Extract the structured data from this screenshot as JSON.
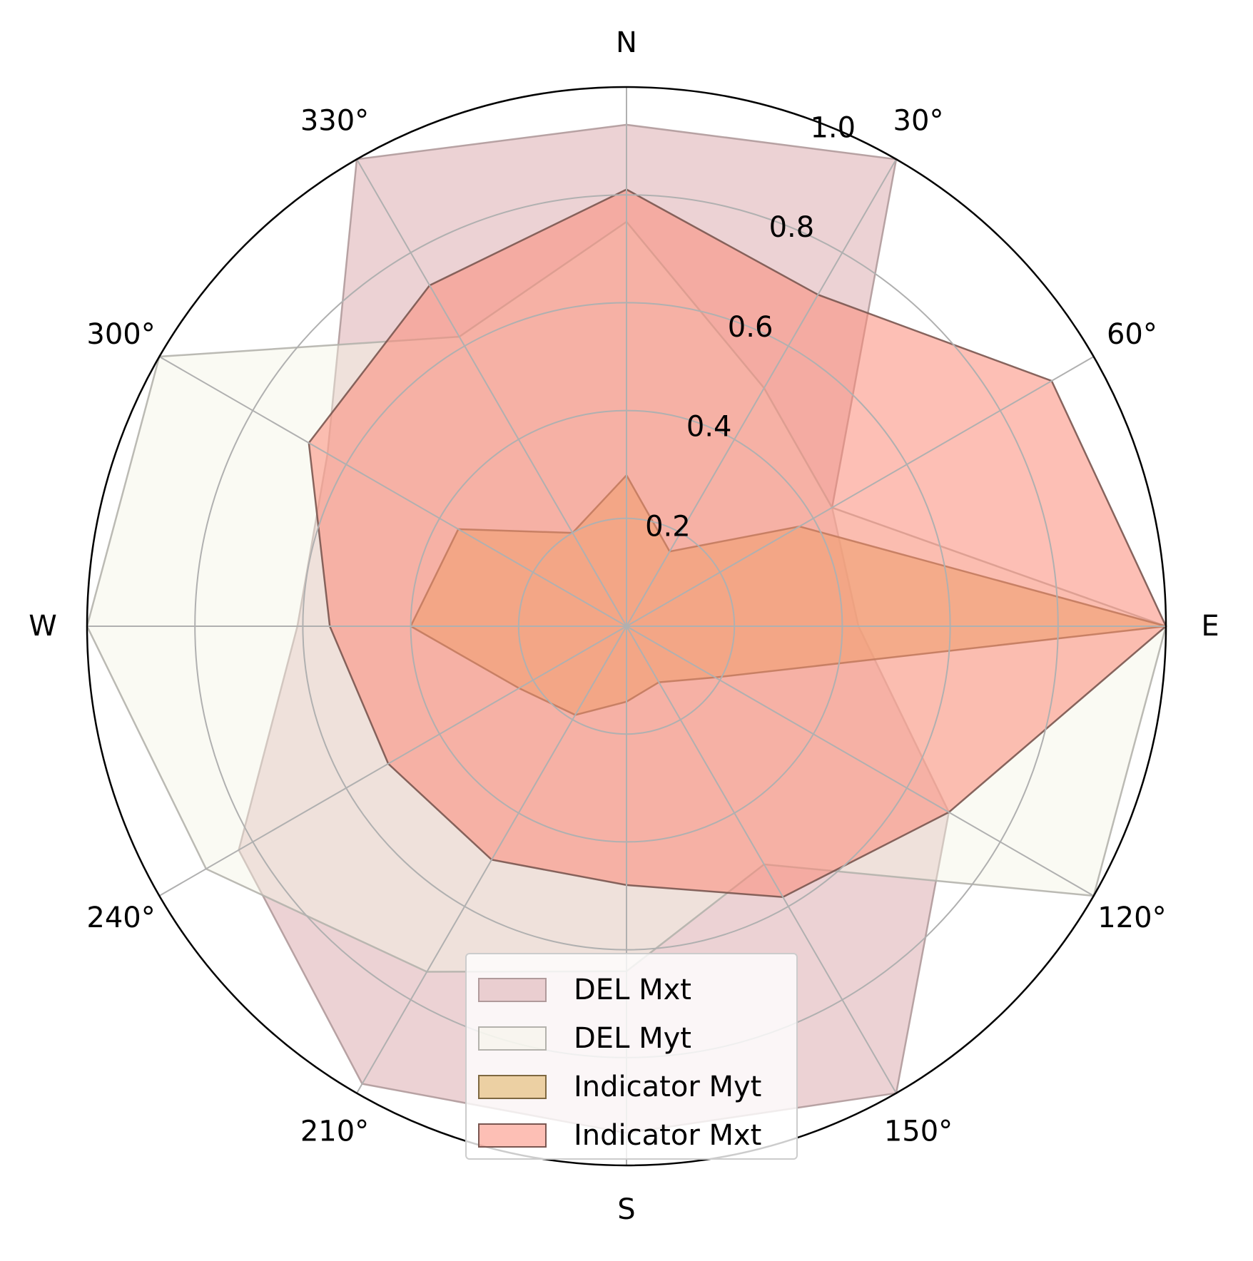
{
  "chart_data": {
    "type": "radar",
    "theta_direction": "clockwise",
    "theta_zero": "N",
    "angle_tick_labels": [
      "N",
      "30°",
      "60°",
      "E",
      "120°",
      "150°",
      "S",
      "210°",
      "240°",
      "W",
      "300°",
      "330°"
    ],
    "angles_deg": [
      0,
      30,
      60,
      90,
      120,
      150,
      180,
      210,
      240,
      270,
      300,
      330
    ],
    "radial_ticks": [
      0.2,
      0.4,
      0.6,
      0.8,
      1.0
    ],
    "radial_tick_labels": [
      "0.2",
      "0.4",
      "0.6",
      "0.8",
      "1.0"
    ],
    "rlim": [
      0,
      1.0
    ],
    "grid": true,
    "legend_position": "bottom-center",
    "series": [
      {
        "name": "DEL Mxt",
        "values": [
          0.93,
          1.0,
          0.44,
          0.43,
          0.69,
          1.0,
          0.94,
          0.98,
          0.83,
          0.61,
          0.64,
          1.0
        ],
        "fill": "#d9a6a9",
        "fill_opacity": 0.5,
        "stroke": "#b09a9b"
      },
      {
        "name": "DEL Myt",
        "values": [
          0.75,
          0.51,
          0.44,
          1.0,
          1.0,
          0.51,
          0.64,
          0.74,
          0.9,
          1.0,
          1.0,
          0.62
        ],
        "fill": "#f4f3e4",
        "fill_opacity": 0.45,
        "stroke": "#b4b2ac"
      },
      {
        "name": "Indicator Myt",
        "values": [
          0.28,
          0.16,
          0.37,
          1.0,
          0.19,
          0.12,
          0.14,
          0.19,
          0.23,
          0.4,
          0.36,
          0.2
        ],
        "fill": "#e2b86a",
        "fill_opacity": 0.6,
        "stroke": "#7e6840"
      },
      {
        "name": "Indicator Mxt",
        "values": [
          0.81,
          0.71,
          0.91,
          1.0,
          0.69,
          0.58,
          0.48,
          0.5,
          0.51,
          0.55,
          0.68,
          0.73
        ],
        "fill": "#fb8a78",
        "fill_opacity": 0.55,
        "stroke": "#7a5650"
      }
    ]
  }
}
